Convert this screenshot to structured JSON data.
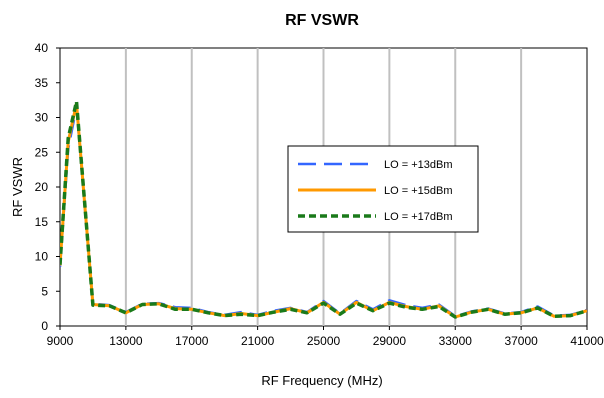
{
  "chart_data": {
    "type": "line",
    "title": "RF VSWR",
    "xlabel": "RF Frequency (MHz)",
    "ylabel": "RF VSWR",
    "xlim": [
      9000,
      41000
    ],
    "ylim": [
      0,
      40
    ],
    "x_ticks": [
      9000,
      13000,
      17000,
      21000,
      25000,
      29000,
      33000,
      37000,
      41000
    ],
    "y_ticks": [
      0,
      5,
      10,
      15,
      20,
      25,
      30,
      35,
      40
    ],
    "grid": "vertical-major",
    "legend_position": "center-right",
    "series": [
      {
        "name": "LO = +13dBm",
        "color": "#3366ff",
        "dash": "long-dash",
        "x": [
          9000,
          9500,
          10000,
          11000,
          12000,
          13000,
          14000,
          15000,
          16000,
          17000,
          18000,
          19000,
          20000,
          21000,
          22000,
          23000,
          24000,
          25000,
          26000,
          27000,
          28000,
          29000,
          30000,
          31000,
          32000,
          33000,
          34000,
          35000,
          36000,
          37000,
          38000,
          39000,
          40000,
          41000
        ],
        "values": [
          8.5,
          25.5,
          31.5,
          3.2,
          3.0,
          2.0,
          3.2,
          3.3,
          2.7,
          2.6,
          2.0,
          1.6,
          2.0,
          1.6,
          2.2,
          2.6,
          2.0,
          3.6,
          1.8,
          3.6,
          2.4,
          3.7,
          3.0,
          2.6,
          3.1,
          1.4,
          2.1,
          2.5,
          1.8,
          2.0,
          2.8,
          1.5,
          1.6,
          2.3
        ]
      },
      {
        "name": "LO = +15dBm",
        "color": "#ff9900",
        "dash": "solid",
        "x": [
          9000,
          9500,
          10000,
          11000,
          12000,
          13000,
          14000,
          15000,
          16000,
          17000,
          18000,
          19000,
          20000,
          21000,
          22000,
          23000,
          24000,
          25000,
          26000,
          27000,
          28000,
          29000,
          30000,
          31000,
          32000,
          33000,
          34000,
          35000,
          36000,
          37000,
          38000,
          39000,
          40000,
          41000
        ],
        "values": [
          8.7,
          26.5,
          32.0,
          3.1,
          2.9,
          1.9,
          3.1,
          3.2,
          2.5,
          2.4,
          1.9,
          1.5,
          1.8,
          1.5,
          2.0,
          2.5,
          1.9,
          3.4,
          1.7,
          3.4,
          2.2,
          3.4,
          2.8,
          2.4,
          2.9,
          1.3,
          2.0,
          2.4,
          1.7,
          1.9,
          2.6,
          1.4,
          1.5,
          2.2
        ]
      },
      {
        "name": "LO = +17dBm",
        "color": "#1a7a1a",
        "dash": "short-dash",
        "x": [
          9000,
          9500,
          10000,
          11000,
          12000,
          13000,
          14000,
          15000,
          16000,
          17000,
          18000,
          19000,
          20000,
          21000,
          22000,
          23000,
          24000,
          25000,
          26000,
          27000,
          28000,
          29000,
          30000,
          31000,
          32000,
          33000,
          34000,
          35000,
          36000,
          37000,
          38000,
          39000,
          40000,
          41000
        ],
        "values": [
          8.8,
          27.0,
          32.3,
          3.0,
          2.9,
          1.9,
          3.1,
          3.2,
          2.4,
          2.4,
          1.9,
          1.5,
          1.7,
          1.5,
          2.0,
          2.4,
          1.9,
          3.3,
          1.7,
          3.3,
          2.2,
          3.3,
          2.7,
          2.4,
          2.8,
          1.3,
          2.0,
          2.4,
          1.7,
          1.9,
          2.6,
          1.4,
          1.5,
          2.2
        ]
      }
    ]
  }
}
